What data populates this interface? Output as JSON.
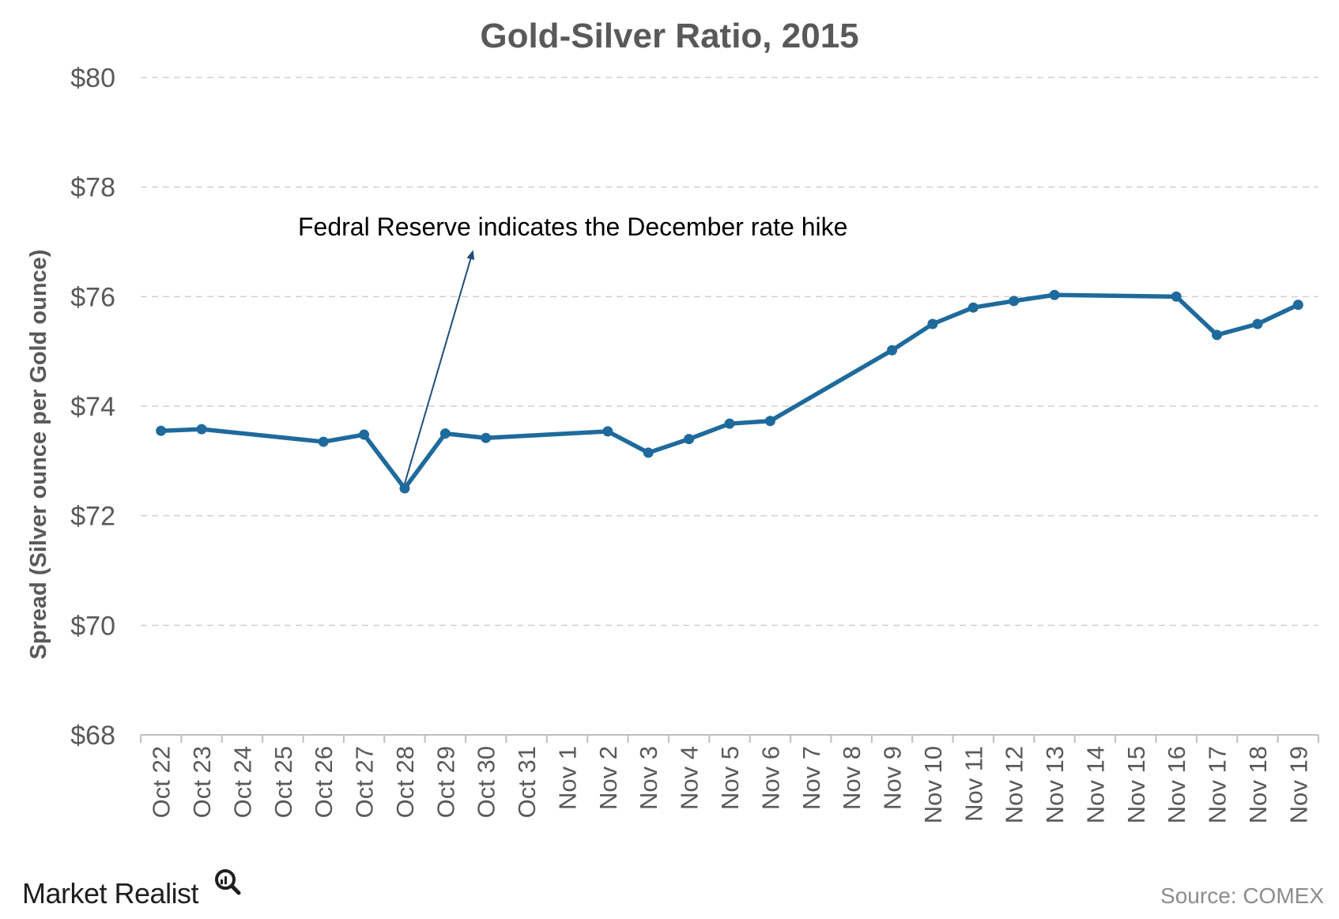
{
  "chart_data": {
    "type": "line",
    "title": "Gold-Silver Ratio, 2015",
    "ylabel": "Spread (Silver ounce per Gold ounce)",
    "xlabel": "",
    "ylim": [
      68,
      80
    ],
    "yticks": [
      68,
      70,
      72,
      74,
      76,
      78,
      80
    ],
    "ytick_labels": [
      "$68",
      "$70",
      "$72",
      "$74",
      "$76",
      "$78",
      "$80"
    ],
    "grid": true,
    "line_color": "#1f6a9c",
    "categories": [
      "Oct 22",
      "Oct 23",
      "Oct 24",
      "Oct 25",
      "Oct 26",
      "Oct 27",
      "Oct 28",
      "Oct 29",
      "Oct 30",
      "Oct 31",
      "Nov 1",
      "Nov 2",
      "Nov 3",
      "Nov 4",
      "Nov 5",
      "Nov 6",
      "Nov 7",
      "Nov 8",
      "Nov 9",
      "Nov 10",
      "Nov 11",
      "Nov 12",
      "Nov 13",
      "Nov 14",
      "Nov 15",
      "Nov 16",
      "Nov 17",
      "Nov 18",
      "Nov 19"
    ],
    "series": [
      {
        "points": [
          {
            "x": "Oct 22",
            "y": 73.55
          },
          {
            "x": "Oct 23",
            "y": 73.58
          },
          {
            "x": "Oct 26",
            "y": 73.35
          },
          {
            "x": "Oct 27",
            "y": 73.48
          },
          {
            "x": "Oct 28",
            "y": 72.5
          },
          {
            "x": "Oct 29",
            "y": 73.5
          },
          {
            "x": "Oct 30",
            "y": 73.42
          },
          {
            "x": "Nov 2",
            "y": 73.54
          },
          {
            "x": "Nov 3",
            "y": 73.15
          },
          {
            "x": "Nov 4",
            "y": 73.4
          },
          {
            "x": "Nov 5",
            "y": 73.68
          },
          {
            "x": "Nov 6",
            "y": 73.73
          },
          {
            "x": "Nov 9",
            "y": 75.02
          },
          {
            "x": "Nov 10",
            "y": 75.5
          },
          {
            "x": "Nov 11",
            "y": 75.8
          },
          {
            "x": "Nov 12",
            "y": 75.92
          },
          {
            "x": "Nov 13",
            "y": 76.03
          },
          {
            "x": "Nov 16",
            "y": 76.0
          },
          {
            "x": "Nov 17",
            "y": 75.3
          },
          {
            "x": "Nov 18",
            "y": 75.5
          },
          {
            "x": "Nov 19",
            "y": 75.85
          }
        ]
      }
    ],
    "annotations": [
      {
        "text": "Fedral Reserve indicates the December rate hike",
        "points_to": "Oct 28"
      }
    ]
  },
  "footer": {
    "brand": "Market Realist",
    "source": "Source: COMEX"
  }
}
